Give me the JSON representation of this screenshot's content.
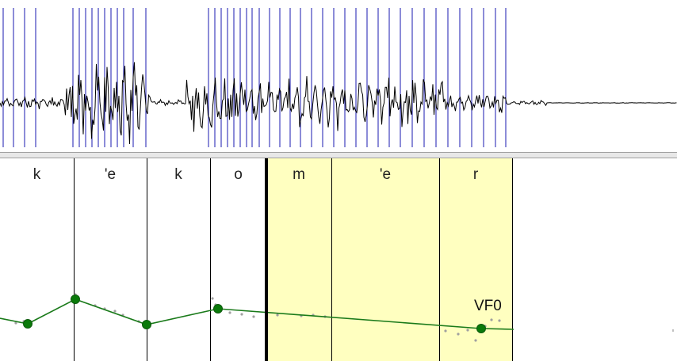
{
  "segments": [
    {
      "label": "k",
      "start": 0,
      "end": 93,
      "selected": false
    },
    {
      "label": "'e",
      "start": 93,
      "end": 185,
      "selected": false
    },
    {
      "label": "k",
      "start": 185,
      "end": 265,
      "selected": false
    },
    {
      "label": "o",
      "start": 265,
      "end": 336,
      "selected": false
    },
    {
      "label": "m",
      "start": 336,
      "end": 418,
      "selected": true
    },
    {
      "label": "'e",
      "start": 418,
      "end": 554,
      "selected": true
    },
    {
      "label": "r",
      "start": 554,
      "end": 646,
      "selected": true
    }
  ],
  "pitch_curve": {
    "label": "VF0",
    "color": "#1a7a1a",
    "point_color": "#0a7a0a"
  },
  "colors": {
    "selection_fill": "#ffffc0",
    "pitch_marks": "#1a1ab0",
    "waveform": "#000000",
    "boundary": "#000000"
  }
}
